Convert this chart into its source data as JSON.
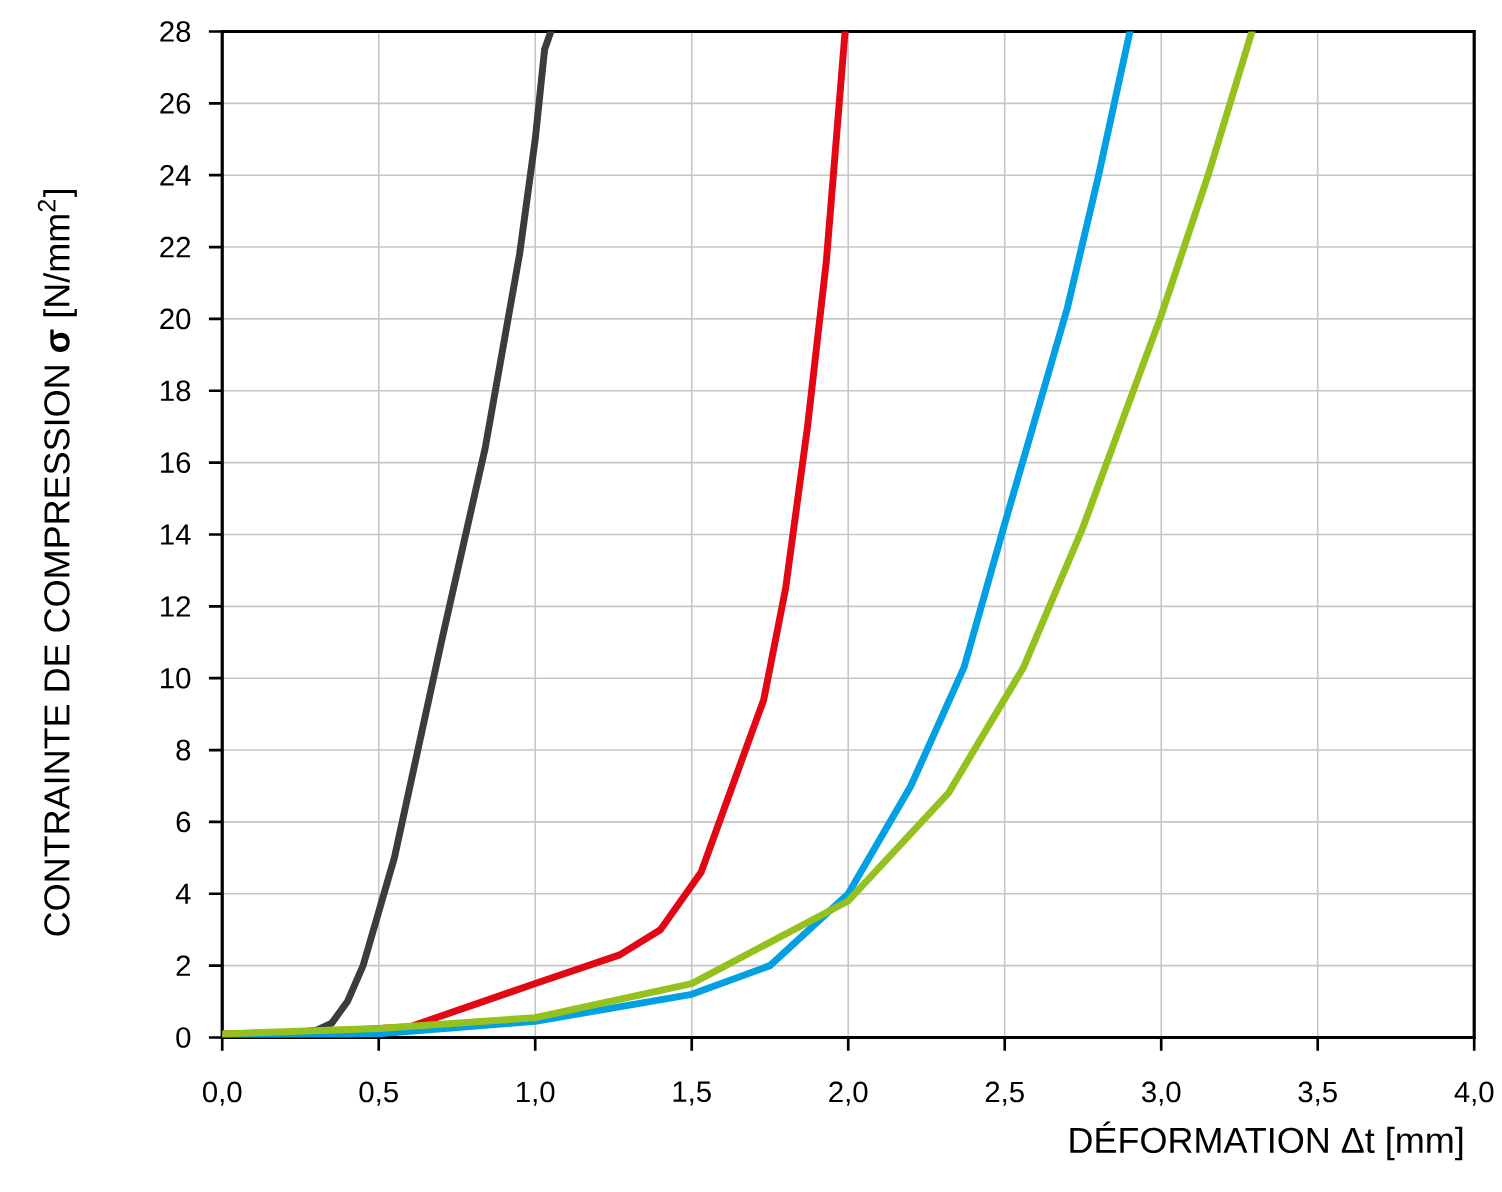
{
  "chart_data": {
    "type": "line",
    "xlabel": "DÉFORMATION Δt [mm]",
    "ylabel": "CONTRAINTE DE COMPRESSION **σ** [N/mm$^{2}$]",
    "xlim": [
      0,
      4
    ],
    "ylim": [
      0,
      28
    ],
    "xticks": [
      {
        "value": 0,
        "label": "0,0"
      },
      {
        "value": 0.5,
        "label": "0,5"
      },
      {
        "value": 1,
        "label": "1,0"
      },
      {
        "value": 1.5,
        "label": "1,5"
      },
      {
        "value": 2,
        "label": "2,0"
      },
      {
        "value": 2.5,
        "label": "2,5"
      },
      {
        "value": 3,
        "label": "3,0"
      },
      {
        "value": 3.5,
        "label": "3,5"
      },
      {
        "value": 4,
        "label": "4,0"
      }
    ],
    "yticks": [
      0,
      2,
      4,
      6,
      8,
      10,
      12,
      14,
      16,
      18,
      20,
      22,
      24,
      26,
      28
    ],
    "grid": true,
    "marker": "none",
    "line_style": "solid",
    "series": [
      {
        "color": "#3c3c3c",
        "x": [
          0,
          0.2,
          0.3,
          0.35,
          0.4,
          0.45,
          0.5,
          0.55,
          0.6,
          0.7,
          0.84,
          0.95,
          1.0,
          1.03,
          1.05
        ],
        "values": [
          0,
          0.1,
          0.2,
          0.4,
          1,
          2,
          3.5,
          5,
          7,
          11,
          16.4,
          21.8,
          25,
          27.5,
          28
        ]
      },
      {
        "color": "#e30613",
        "x": [
          0,
          0.3,
          0.6,
          0.8,
          1.0,
          1.27,
          1.4,
          1.53,
          1.63,
          1.73,
          1.8,
          1.87,
          1.93,
          1.99
        ],
        "values": [
          0.1,
          0.15,
          0.3,
          0.9,
          1.5,
          2.3,
          3,
          4.6,
          7,
          9.4,
          12.5,
          17,
          21.6,
          28
        ]
      },
      {
        "color": "#00a0e3",
        "x": [
          0,
          0.5,
          1.0,
          1.5,
          1.75,
          2.0,
          2.2,
          2.37,
          2.5,
          2.6,
          2.7,
          2.8,
          2.9
        ],
        "values": [
          0,
          0.1,
          0.45,
          1.2,
          2,
          4,
          7,
          10.3,
          14.3,
          17.3,
          20.3,
          24,
          28
        ]
      },
      {
        "color": "#95c11f",
        "x": [
          0,
          0.5,
          1.0,
          1.5,
          2.0,
          2.32,
          2.56,
          2.75,
          3.0,
          3.15,
          3.29
        ],
        "values": [
          0.1,
          0.25,
          0.55,
          1.5,
          3.8,
          6.8,
          10.3,
          14.2,
          20.1,
          24,
          28
        ]
      }
    ]
  }
}
